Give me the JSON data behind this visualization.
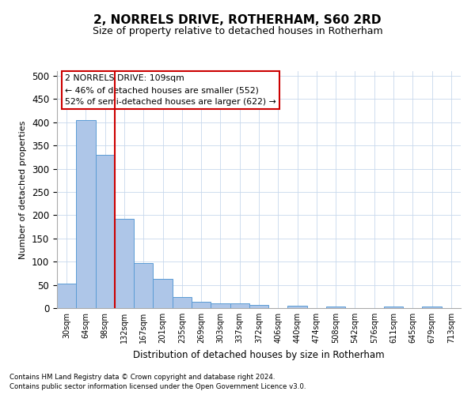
{
  "title": "2, NORRELS DRIVE, ROTHERHAM, S60 2RD",
  "subtitle": "Size of property relative to detached houses in Rotherham",
  "xlabel": "Distribution of detached houses by size in Rotherham",
  "ylabel": "Number of detached properties",
  "categories": [
    "30sqm",
    "64sqm",
    "98sqm",
    "132sqm",
    "167sqm",
    "201sqm",
    "235sqm",
    "269sqm",
    "303sqm",
    "337sqm",
    "372sqm",
    "406sqm",
    "440sqm",
    "474sqm",
    "508sqm",
    "542sqm",
    "576sqm",
    "611sqm",
    "645sqm",
    "679sqm",
    "713sqm"
  ],
  "values": [
    52,
    405,
    330,
    192,
    97,
    63,
    24,
    13,
    10,
    10,
    7,
    0,
    5,
    0,
    4,
    0,
    0,
    4,
    0,
    4,
    0
  ],
  "bar_color": "#aec6e8",
  "bar_edge_color": "#5b9bd5",
  "vline_x_index": 2,
  "vline_color": "#cc0000",
  "annotation_text": "2 NORRELS DRIVE: 109sqm\n← 46% of detached houses are smaller (552)\n52% of semi-detached houses are larger (622) →",
  "annotation_box_color": "#ffffff",
  "annotation_box_edge_color": "#cc0000",
  "footnote1": "Contains HM Land Registry data © Crown copyright and database right 2024.",
  "footnote2": "Contains public sector information licensed under the Open Government Licence v3.0.",
  "ylim": [
    0,
    510
  ],
  "yticks": [
    0,
    50,
    100,
    150,
    200,
    250,
    300,
    350,
    400,
    450,
    500
  ],
  "background_color": "#ffffff",
  "grid_color": "#c8d8ec"
}
